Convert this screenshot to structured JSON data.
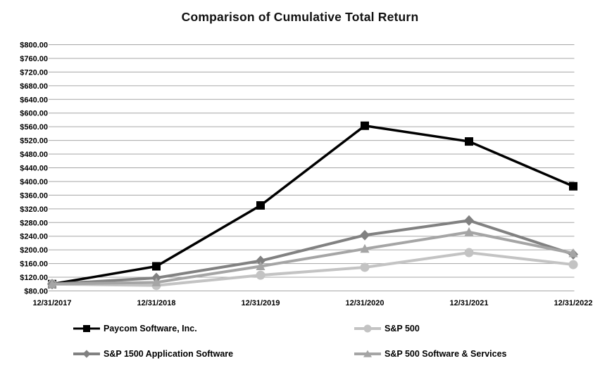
{
  "chart_data": {
    "type": "line",
    "title": "Comparison of Cumulative Total Return",
    "x_labels": [
      "12/31/2017",
      "12/31/2018",
      "12/31/2019",
      "12/31/2020",
      "12/31/2021",
      "12/31/2022"
    ],
    "series": [
      {
        "name": "Paycom Software, Inc.",
        "marker": "square",
        "color": "#000000",
        "values": [
          100,
          152,
          330,
          563,
          517,
          386
        ]
      },
      {
        "name": "S&P 500",
        "marker": "circle",
        "color": "#c3c3c3",
        "values": [
          100,
          96,
          126,
          149,
          192,
          157
        ]
      },
      {
        "name": "S&P 1500 Application Software",
        "marker": "diamond",
        "color": "#818181",
        "values": [
          100,
          118,
          168,
          243,
          286,
          187
        ]
      },
      {
        "name": "S&P 500 Software & Services",
        "marker": "triangle",
        "color": "#a5a5a5",
        "values": [
          100,
          105,
          152,
          203,
          252,
          190
        ]
      }
    ],
    "ylim": [
      80,
      800
    ],
    "y_tick_step": 40,
    "y_ticks": [
      "$80.00",
      "$120.00",
      "$160.00",
      "$200.00",
      "$240.00",
      "$280.00",
      "$320.00",
      "$360.00",
      "$400.00",
      "$440.00",
      "$480.00",
      "$520.00",
      "$560.00",
      "$600.00",
      "$640.00",
      "$680.00",
      "$720.00",
      "$760.00",
      "$800.00"
    ],
    "grid": "horizontal",
    "gridline_color": "#a6a6a6",
    "background": "#ffffff",
    "legend_position": "bottom"
  }
}
